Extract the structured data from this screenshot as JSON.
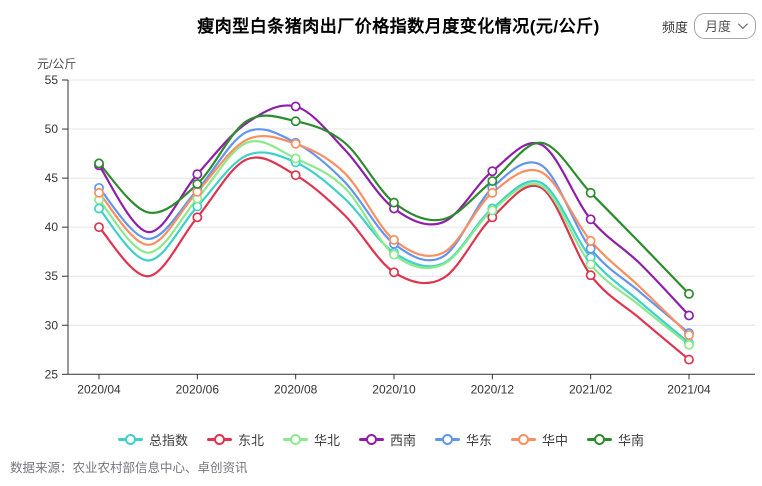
{
  "header": {
    "title": "瘦肉型白条猪肉出厂价格指数月度变化情况(元/公斤)",
    "frequency_label": "频度",
    "frequency_value": "月度"
  },
  "chart_data": {
    "type": "line",
    "smooth": true,
    "title": "瘦肉型白条猪肉出厂价格指数月度变化情况(元/公斤)",
    "ylabel": "元/公斤",
    "xlabel": "",
    "ylim": [
      25,
      55
    ],
    "y_ticks": [
      25,
      30,
      35,
      40,
      45,
      50,
      55
    ],
    "grid": true,
    "legend_position": "bottom",
    "x_label_every": 2,
    "x": [
      "2020/04",
      "2020/05",
      "2020/06",
      "2020/07",
      "2020/08",
      "2020/09",
      "2020/10",
      "2020/11",
      "2020/12",
      "2021/01",
      "2021/02",
      "2021/03",
      "2021/04"
    ],
    "series": [
      {
        "name": "总指数",
        "color": "#3FD1C9",
        "values": [
          41.9,
          36.6,
          42.1,
          47.3,
          46.6,
          42.9,
          37.4,
          36.3,
          41.9,
          44.5,
          36.9,
          32.4,
          28.2
        ]
      },
      {
        "name": "东北",
        "color": "#DE3450",
        "values": [
          40.0,
          35.0,
          41.0,
          46.9,
          45.3,
          41.2,
          35.4,
          34.8,
          41.0,
          44.0,
          35.1,
          30.7,
          26.5
        ]
      },
      {
        "name": "华北",
        "color": "#8DE98D",
        "values": [
          42.8,
          37.4,
          42.9,
          48.6,
          47.0,
          44.0,
          37.2,
          36.2,
          41.7,
          44.2,
          36.2,
          32.0,
          28.0
        ]
      },
      {
        "name": "西南",
        "color": "#8F1FA8",
        "values": [
          46.3,
          39.5,
          45.4,
          50.6,
          52.3,
          47.9,
          41.9,
          40.5,
          45.7,
          48.4,
          40.8,
          36.3,
          31.0
        ]
      },
      {
        "name": "华东",
        "color": "#6495ED",
        "values": [
          44.0,
          38.8,
          43.8,
          49.7,
          48.6,
          44.6,
          38.3,
          37.0,
          44.0,
          46.3,
          37.8,
          33.4,
          29.2
        ]
      },
      {
        "name": "华中",
        "color": "#FA8F62",
        "values": [
          43.5,
          38.2,
          43.6,
          48.9,
          48.5,
          45.5,
          38.7,
          37.4,
          43.5,
          45.6,
          38.6,
          33.9,
          29.0
        ]
      },
      {
        "name": "华南",
        "color": "#2D8C2D",
        "values": [
          46.5,
          41.5,
          44.4,
          50.8,
          50.8,
          48.6,
          42.5,
          40.8,
          44.7,
          48.6,
          43.5,
          38.4,
          33.2
        ]
      }
    ]
  },
  "footer": {
    "source": "数据来源：农业农村部信息中心、卓创资讯"
  }
}
